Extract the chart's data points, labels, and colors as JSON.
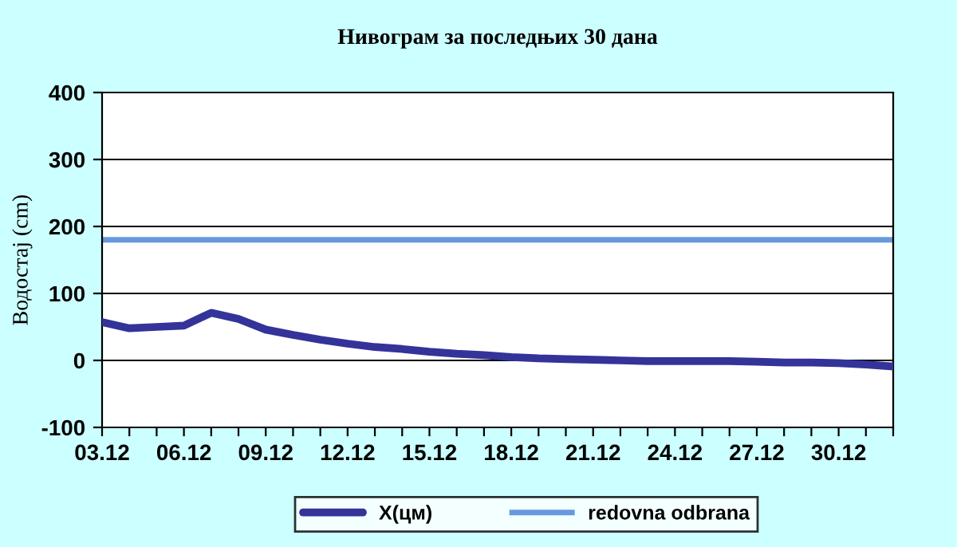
{
  "chart_data": {
    "type": "line",
    "title": "Нивограм за последњих 30 дана",
    "ylabel": "Водостај (cm)",
    "categories": [
      "03.12",
      null,
      null,
      "06.12",
      null,
      null,
      "09.12",
      null,
      null,
      "12.12",
      null,
      null,
      "15.12",
      null,
      null,
      "18.12",
      null,
      null,
      "21.12",
      null,
      null,
      "24.12",
      null,
      null,
      "27.12",
      null,
      null,
      "30.12",
      null,
      null
    ],
    "series": [
      {
        "name": "X(цм)",
        "color": "#333399",
        "values": [
          57,
          48,
          50,
          52,
          71,
          62,
          46,
          38,
          31,
          25,
          20,
          17,
          13,
          10,
          8,
          5,
          3,
          2,
          1,
          0,
          -1,
          -1,
          -1,
          -1,
          -2,
          -3,
          -3,
          -4,
          -6,
          -9
        ]
      }
    ],
    "ref_lines": [
      {
        "axis": "y",
        "value": 180,
        "label": "redovna odbrana",
        "color": "#6699dd"
      }
    ],
    "ylim": [
      -100,
      400
    ],
    "yticks": [
      -100,
      0,
      100,
      200,
      300,
      400
    ],
    "grid": "y",
    "legend": "bottom",
    "marker": "none",
    "line_style": "solid"
  }
}
